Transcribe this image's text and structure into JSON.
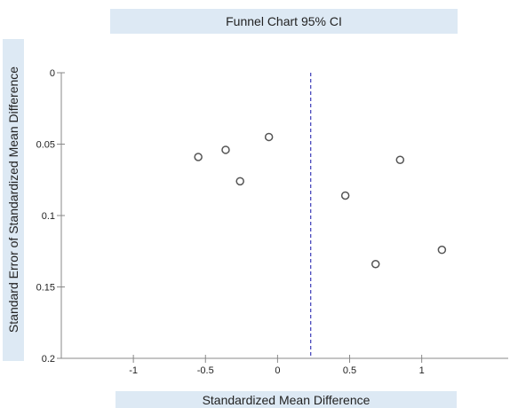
{
  "chart_data": {
    "type": "scatter",
    "title": "Funnel Chart 95% CI",
    "xlabel": "Standardized Mean Difference",
    "ylabel": "Standard Error of Standardized Mean Difference",
    "xlim": [
      -1.5,
      1.6
    ],
    "ylim": [
      0,
      0.2
    ],
    "y_inverted": true,
    "x_ticks": [
      -1,
      -0.5,
      0,
      0.5,
      1
    ],
    "x_tick_labels": [
      "-1",
      "-0.5",
      "0",
      "0.5",
      "1"
    ],
    "y_ticks": [
      0,
      0.05,
      0.1,
      0.15,
      0.2
    ],
    "y_tick_labels": [
      "0",
      "0.05",
      "0.1",
      "0.15",
      "0.2"
    ],
    "reference_line_x": 0.23,
    "points": [
      {
        "x": -0.55,
        "y": 0.059
      },
      {
        "x": -0.36,
        "y": 0.054
      },
      {
        "x": -0.26,
        "y": 0.076
      },
      {
        "x": -0.06,
        "y": 0.045
      },
      {
        "x": 0.47,
        "y": 0.086
      },
      {
        "x": 0.68,
        "y": 0.134
      },
      {
        "x": 0.85,
        "y": 0.061
      },
      {
        "x": 1.14,
        "y": 0.124
      }
    ],
    "colors": {
      "marker": "#555555",
      "reference_line": "#3b3bb8",
      "axis": "#888888"
    }
  }
}
